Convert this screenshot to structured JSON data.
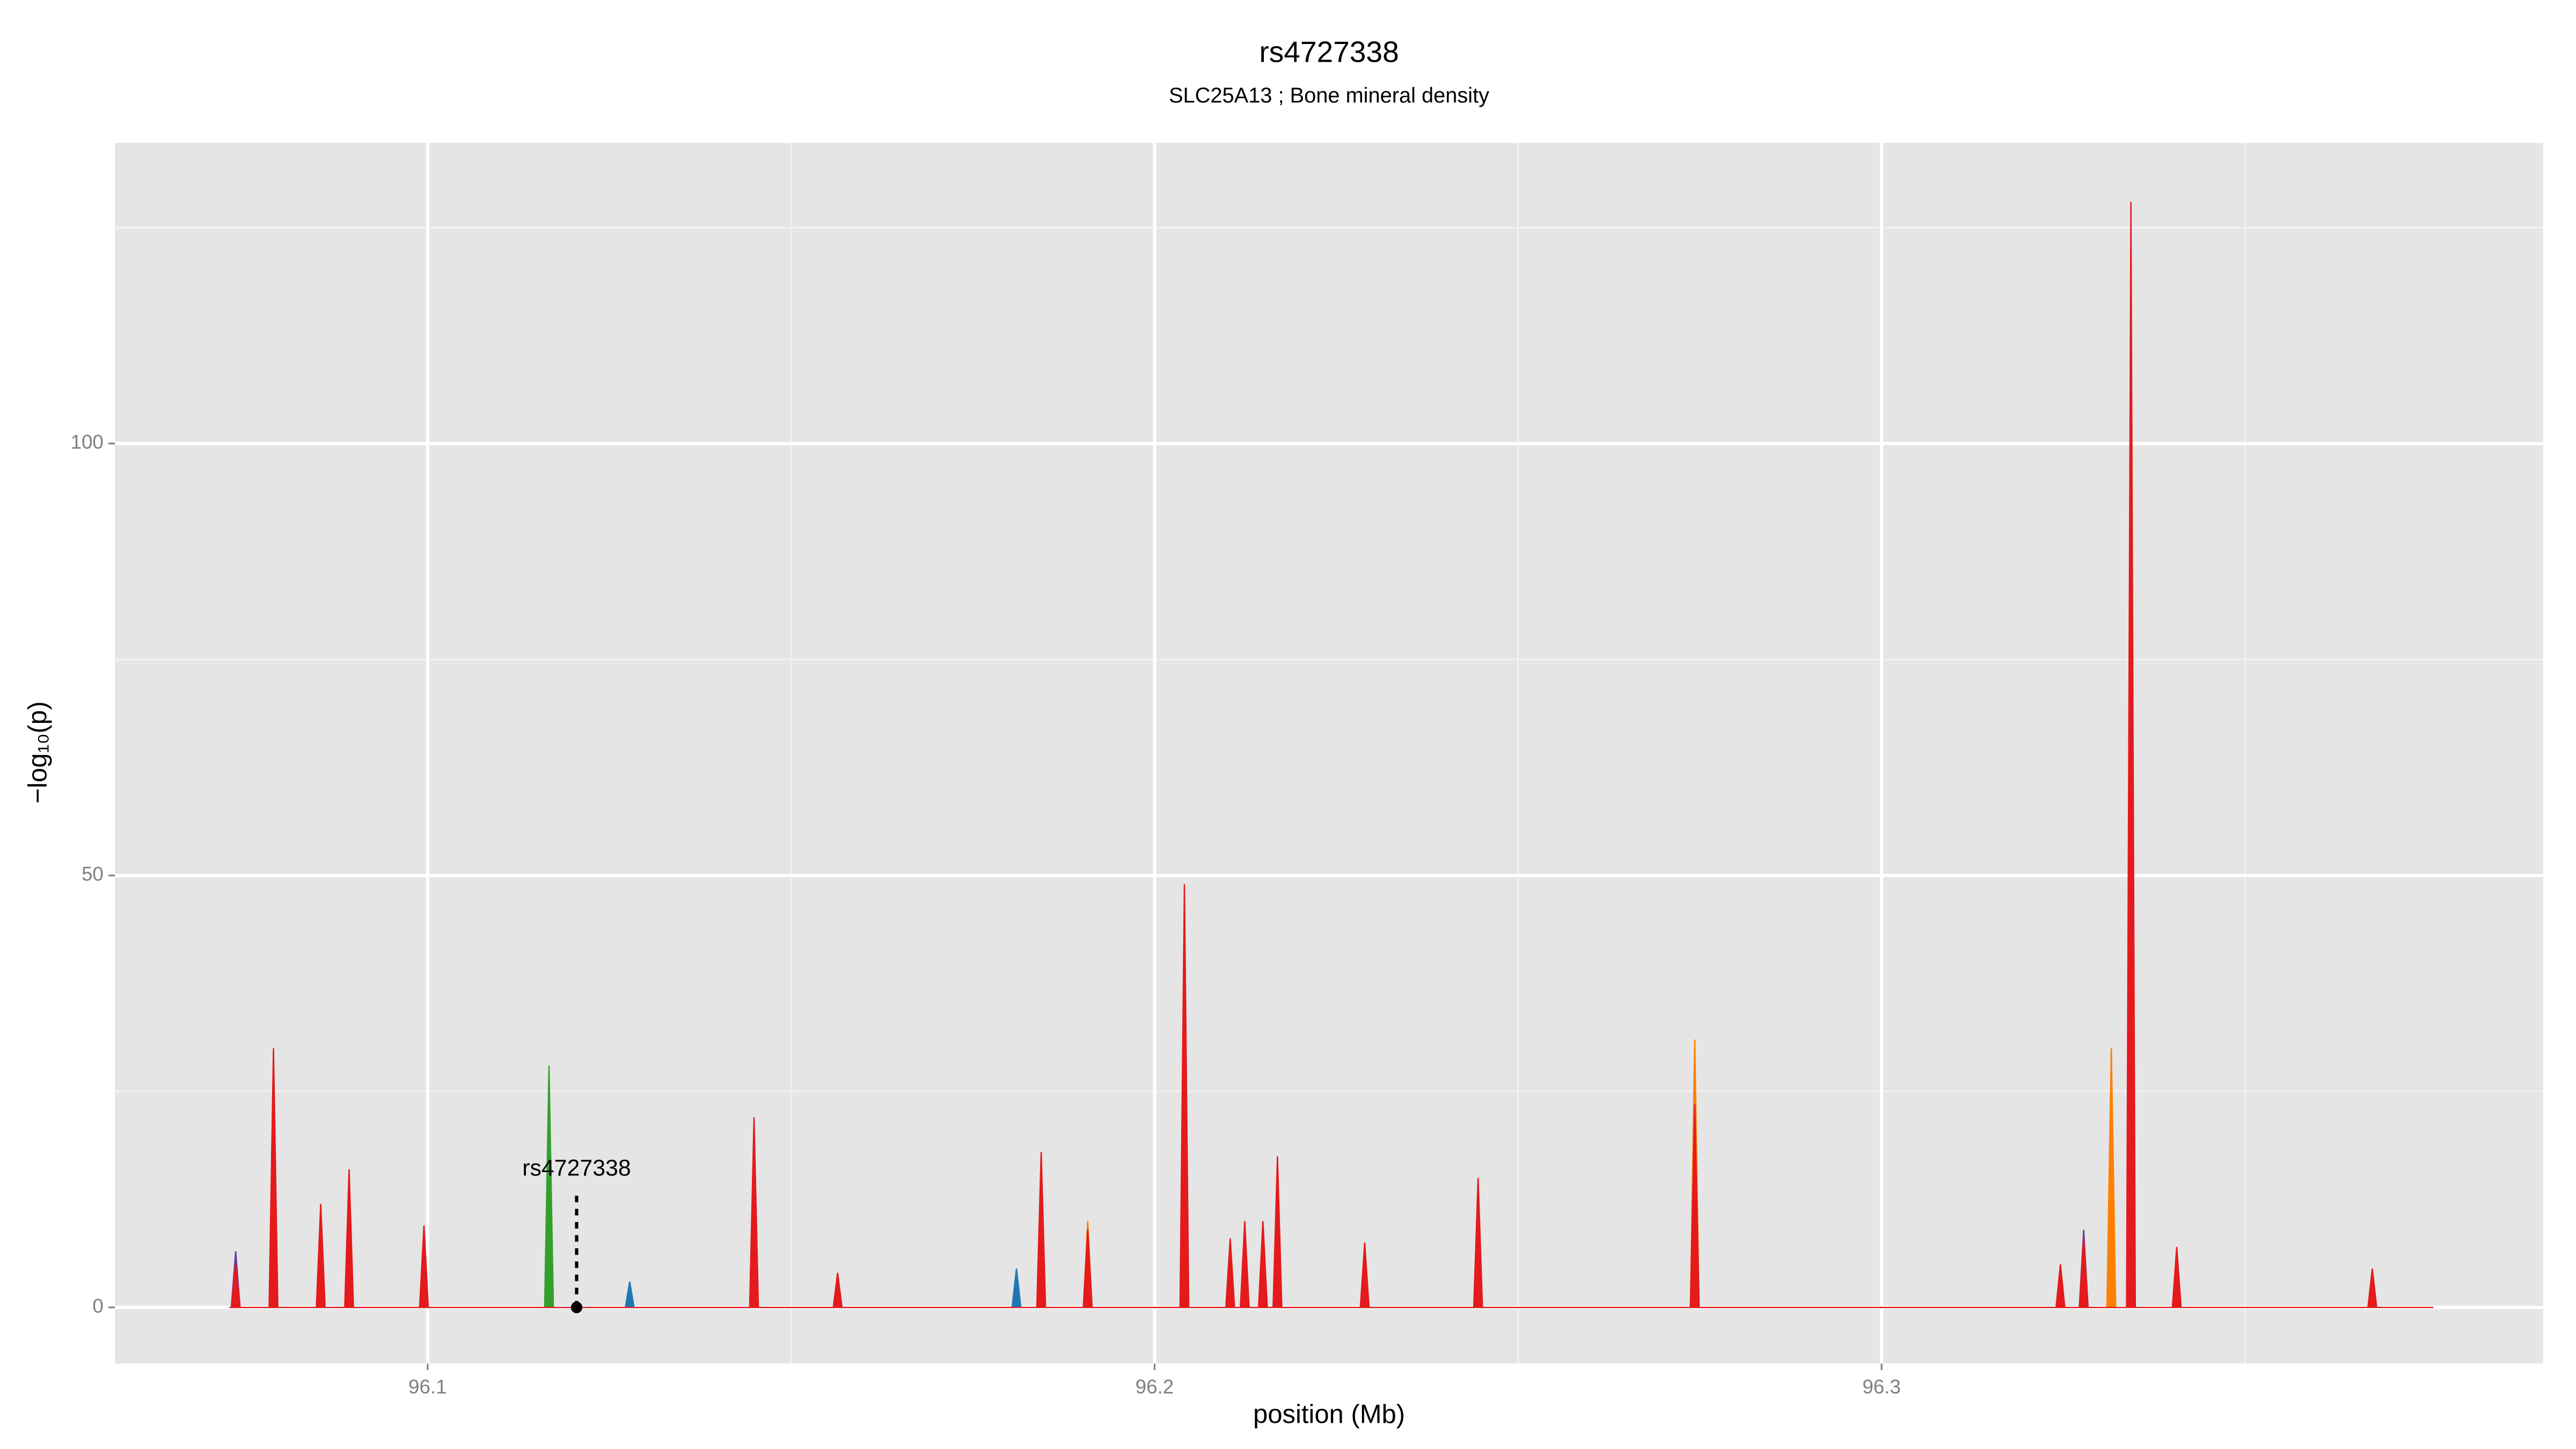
{
  "chart_data": {
    "type": "area",
    "title": "rs4727338",
    "subtitle": "SLC25A13 ; Bone mineral density",
    "x_label": "position (Mb)",
    "y_label": "−log₁₀(p)",
    "xlim": [
      96.057,
      96.391
    ],
    "ylim": [
      -6.5,
      134.8
    ],
    "xticks": [
      96.1,
      96.2,
      96.3
    ],
    "yticks": [
      0,
      50,
      100
    ],
    "grid": true,
    "series": [
      {
        "color": "#ff7f00",
        "x": [
          96.1902,
          96.1908,
          96.1914,
          96.2283,
          96.2289,
          96.2295,
          96.2737,
          96.2743,
          96.2749,
          96.331,
          96.3316,
          96.3322
        ],
        "values": [
          0,
          10,
          0,
          0,
          5,
          0,
          0,
          31,
          0,
          0,
          30,
          0
        ]
      },
      {
        "color": "#33a02c",
        "x": [
          96.1161,
          96.1167,
          96.1173
        ],
        "values": [
          0,
          28,
          0
        ]
      },
      {
        "color": "#1f78b4",
        "x": [
          96.1272,
          96.1278,
          96.1284,
          96.1804,
          96.181,
          96.1816
        ],
        "values": [
          0,
          3,
          0,
          0,
          4.5,
          0
        ]
      },
      {
        "color": "#6a3d9a",
        "x": [
          96.073,
          96.0736,
          96.0742,
          96.3272,
          96.3278,
          96.3284
        ],
        "values": [
          0,
          6.5,
          0,
          0,
          9,
          0
        ]
      },
      {
        "color": "#e41a1c",
        "x": [
          96.0727,
          96.073,
          96.0736,
          96.0742,
          96.0782,
          96.0788,
          96.0794,
          96.0847,
          96.0853,
          96.0859,
          96.0886,
          96.0892,
          96.0898,
          96.0989,
          96.0995,
          96.1001,
          96.1443,
          96.1449,
          96.1455,
          96.1558,
          96.1564,
          96.157,
          96.1838,
          96.1844,
          96.185,
          96.1902,
          96.1908,
          96.1914,
          96.2035,
          96.2041,
          96.2047,
          96.2098,
          96.2104,
          96.211,
          96.2118,
          96.2124,
          96.213,
          96.2143,
          96.2149,
          96.2155,
          96.2163,
          96.2169,
          96.2175,
          96.2283,
          96.2289,
          96.2295,
          96.2439,
          96.2445,
          96.2451,
          96.2737,
          96.2743,
          96.2749,
          96.324,
          96.3246,
          96.3252,
          96.3272,
          96.3278,
          96.3284,
          96.3337,
          96.3343,
          96.3349,
          96.34,
          96.3406,
          96.3412,
          96.3669,
          96.3675,
          96.3681,
          96.3759
        ],
        "values": [
          0,
          0,
          5,
          0,
          0,
          30,
          0,
          0,
          12,
          0,
          0,
          16,
          0,
          0,
          9.5,
          0,
          0,
          22,
          0,
          0,
          4,
          0,
          0,
          18,
          0,
          0,
          9,
          0,
          0,
          49,
          0,
          0,
          8,
          0,
          0,
          10,
          0,
          0,
          10,
          0,
          0,
          17.5,
          0,
          0,
          7.5,
          0,
          0,
          15,
          0,
          0,
          23.5,
          0,
          0,
          5,
          0,
          0,
          8,
          0,
          0,
          128,
          0,
          0,
          7,
          0,
          0,
          4.5,
          0,
          0
        ]
      }
    ],
    "annotation": {
      "label": "rs4727338",
      "x": 96.1205,
      "y": 0
    }
  }
}
